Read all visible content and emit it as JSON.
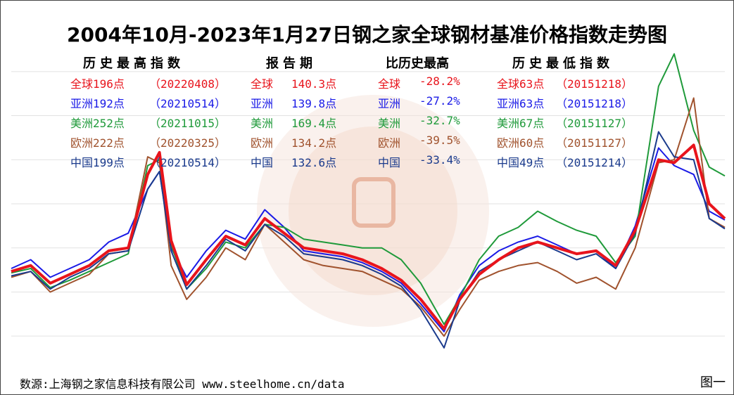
{
  "title": "2004年10月-2023年1月27日钢之家全球钢材基准价格指数走势图",
  "headers": {
    "high": "历史最高指数",
    "report": "报告期",
    "compare": "比历史最高",
    "low": "历史最低指数"
  },
  "rows": [
    {
      "color": "#e8141c",
      "high": "全球196点",
      "high_date": "（20220408）",
      "rep_name": "全球",
      "rep_val": "140.3点",
      "cmp_name": "全球",
      "cmp_val": "-28.2%",
      "low": "全球63点",
      "low_date": "（20151218）"
    },
    {
      "color": "#1a1ae6",
      "high": "亚洲192点",
      "high_date": "（20210514）",
      "rep_name": "亚洲",
      "rep_val": "139.8点",
      "cmp_name": "亚洲",
      "cmp_val": "-27.2%",
      "low": "亚洲63点",
      "low_date": "（20151218）"
    },
    {
      "color": "#1f9a3a",
      "high": "美洲252点",
      "high_date": "（20211015）",
      "rep_name": "美洲",
      "rep_val": "169.4点",
      "cmp_name": "美洲",
      "cmp_val": "-32.7%",
      "low": "美洲67点",
      "low_date": "（20151127）"
    },
    {
      "color": "#a0522d",
      "high": "欧洲222点",
      "high_date": "（20220325）",
      "rep_name": "欧洲",
      "rep_val": "134.2点",
      "cmp_name": "欧洲",
      "cmp_val": "-39.5%",
      "low": "欧洲60点",
      "low_date": "（20151127）"
    },
    {
      "color": "#1a3a8c",
      "high": "中国199点",
      "high_date": "（20210514）",
      "rep_name": "中国",
      "rep_val": "132.6点",
      "cmp_name": "中国",
      "cmp_val": "-33.4%",
      "low": "中国49点",
      "low_date": "（20151214）"
    }
  ],
  "footer": {
    "source": "数源:上海钢之家信息科技有限公司 www.steelhome.cn/data",
    "figure_label": "图一"
  },
  "chart_data": {
    "type": "line",
    "x": [
      2004.8,
      2005.3,
      2005.8,
      2006.3,
      2006.8,
      2007.3,
      2007.8,
      2008.3,
      2008.6,
      2008.9,
      2009.3,
      2009.8,
      2010.3,
      2010.8,
      2011.3,
      2011.8,
      2012.3,
      2012.8,
      2013.3,
      2013.8,
      2014.3,
      2014.8,
      2015.3,
      2015.9,
      2016.3,
      2016.8,
      2017.3,
      2017.8,
      2018.3,
      2018.8,
      2019.3,
      2019.8,
      2020.3,
      2020.8,
      2021.4,
      2021.8,
      2022.3,
      2022.7,
      2023.1
    ],
    "series": [
      {
        "name": "全球",
        "color": "#e8141c",
        "values": [
          104,
          108,
          96,
          102,
          108,
          118,
          120,
          170,
          185,
          125,
          95,
          112,
          128,
          122,
          140,
          130,
          120,
          118,
          116,
          112,
          106,
          98,
          85,
          65,
          85,
          102,
          112,
          120,
          124,
          120,
          116,
          118,
          108,
          132,
          180,
          178,
          190,
          150,
          140
        ]
      },
      {
        "name": "亚洲",
        "color": "#1a1ae6",
        "values": [
          106,
          112,
          100,
          106,
          112,
          124,
          130,
          160,
          172,
          120,
          100,
          118,
          132,
          126,
          146,
          134,
          118,
          116,
          114,
          110,
          104,
          96,
          82,
          63,
          88,
          108,
          118,
          124,
          128,
          122,
          116,
          118,
          106,
          135,
          188,
          176,
          170,
          145,
          139
        ]
      },
      {
        "name": "美洲",
        "color": "#1f9a3a",
        "values": [
          103,
          106,
          93,
          98,
          104,
          110,
          116,
          176,
          180,
          122,
          92,
          106,
          124,
          120,
          136,
          134,
          126,
          124,
          122,
          120,
          120,
          112,
          96,
          68,
          86,
          112,
          128,
          134,
          145,
          138,
          132,
          128,
          110,
          128,
          230,
          252,
          200,
          175,
          169
        ]
      },
      {
        "name": "欧洲",
        "color": "#a0522d",
        "values": [
          100,
          104,
          90,
          96,
          102,
          116,
          118,
          182,
          178,
          108,
          85,
          100,
          120,
          112,
          136,
          124,
          112,
          108,
          106,
          104,
          98,
          92,
          80,
          60,
          78,
          98,
          104,
          108,
          110,
          104,
          96,
          100,
          92,
          120,
          178,
          180,
          222,
          140,
          134
        ]
      },
      {
        "name": "中国",
        "color": "#1a3a8c",
        "values": [
          101,
          104,
          92,
          100,
          106,
          116,
          118,
          160,
          172,
          118,
          92,
          108,
          126,
          118,
          136,
          128,
          116,
          114,
          112,
          108,
          102,
          94,
          78,
          52,
          84,
          104,
          112,
          118,
          124,
          118,
          112,
          116,
          106,
          130,
          199,
          182,
          180,
          140,
          133
        ]
      }
    ],
    "xlim": [
      2004.8,
      2023.1
    ],
    "ylim": [
      40,
      260
    ],
    "grid": true,
    "legend": "none"
  }
}
